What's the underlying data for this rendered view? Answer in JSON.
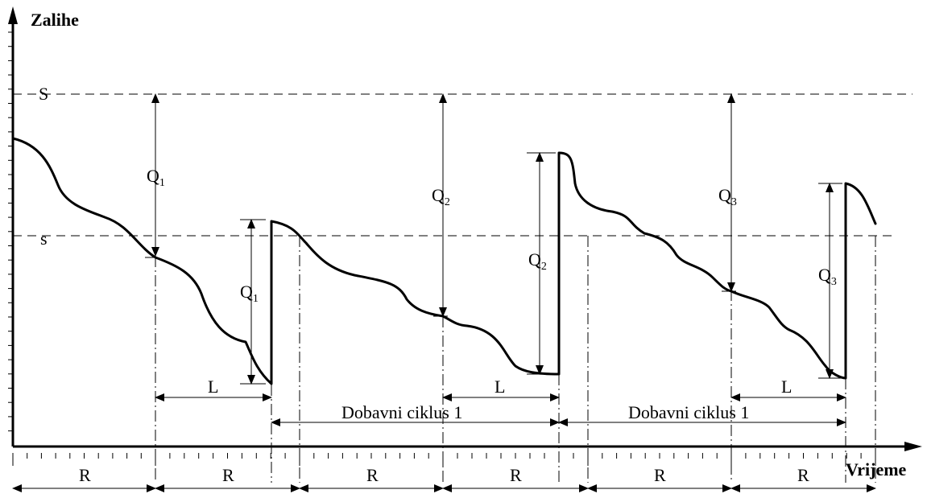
{
  "axes": {
    "y_title": "Zalihe",
    "x_title": "Vrijeme"
  },
  "levels": {
    "upper": "S",
    "lower": "s"
  },
  "orders": [
    {
      "letter": "Q",
      "sub": "1"
    },
    {
      "letter": "Q",
      "sub": "2"
    },
    {
      "letter": "Q",
      "sub": "3"
    }
  ],
  "lead_time_label": "L",
  "review_period_label": "R",
  "cycle_label": "Dobavni ciklus 1",
  "colors": {
    "ink": "#000000",
    "background": "#ffffff"
  }
}
